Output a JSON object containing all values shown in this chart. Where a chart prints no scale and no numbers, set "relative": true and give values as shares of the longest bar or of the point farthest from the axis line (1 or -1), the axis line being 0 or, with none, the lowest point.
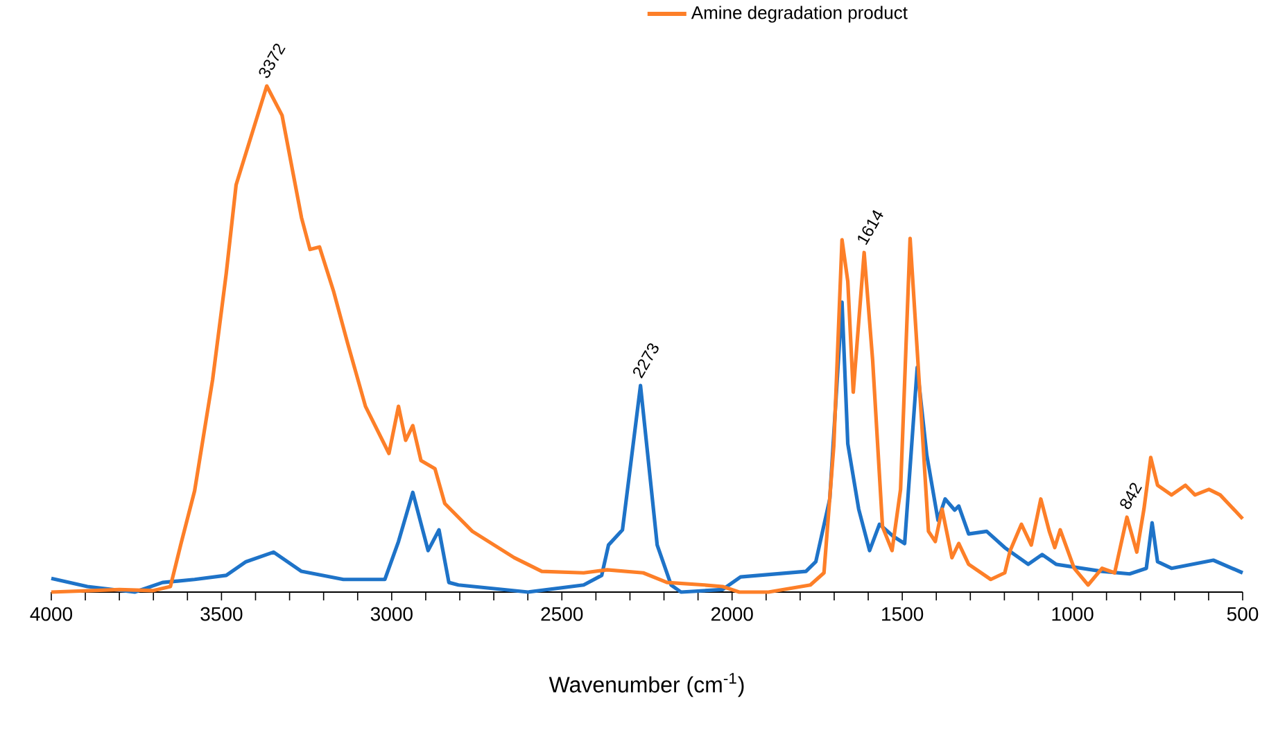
{
  "chart_data": {
    "type": "line",
    "xlabel": "Wavenumber (cm$^{-1}$)",
    "relative": true,
    "legend": "top",
    "xlim": [
      4000,
      500
    ],
    "xticks": [
      4000,
      {
        "value": 3900,
        "label": null
      },
      {
        "value": 3800,
        "label": null
      },
      {
        "value": 3700,
        "label": null
      },
      {
        "value": 3600,
        "label": null
      },
      3500,
      {
        "value": 3400,
        "label": null
      },
      {
        "value": 3300,
        "label": null
      },
      {
        "value": 3200,
        "label": null
      },
      {
        "value": 3100,
        "label": null
      },
      3000,
      {
        "value": 2900,
        "label": null
      },
      {
        "value": 2800,
        "label": null
      },
      {
        "value": 2700,
        "label": null
      },
      {
        "value": 2600,
        "label": null
      },
      2500,
      {
        "value": 2400,
        "label": null
      },
      {
        "value": 2300,
        "label": null
      },
      {
        "value": 2200,
        "label": null
      },
      {
        "value": 2100,
        "label": null
      },
      2000,
      {
        "value": 1900,
        "label": null
      },
      {
        "value": 1800,
        "label": null
      },
      {
        "value": 1700,
        "label": null
      },
      {
        "value": 1600,
        "label": null
      },
      1500,
      {
        "value": 1400,
        "label": null
      },
      {
        "value": 1300,
        "label": null
      },
      {
        "value": 1200,
        "label": null
      },
      {
        "value": 1100,
        "label": null
      },
      1000,
      {
        "value": 900,
        "label": null
      },
      {
        "value": 800,
        "label": null
      },
      {
        "value": 700,
        "label": null
      },
      {
        "value": 600,
        "label": null
      },
      500
    ],
    "series": [
      {
        "color": "#1e73c8",
        "x": [
          4000,
          3894,
          3755,
          3673,
          3579,
          3486,
          3428,
          3347,
          3265,
          3142,
          3020,
          2980,
          2938,
          2893,
          2861,
          2832,
          2804,
          2599,
          2436,
          2383,
          2363,
          2322,
          2269,
          2220,
          2179,
          2150,
          2028,
          1975,
          1783,
          1754,
          1713,
          1677,
          1660,
          1628,
          1596,
          1567,
          1526,
          1493,
          1456,
          1428,
          1395,
          1374,
          1346,
          1334,
          1305,
          1252,
          1199,
          1130,
          1089,
          1048,
          913,
          832,
          783,
          766,
          750,
          709,
          586,
          500
        ],
        "values": [
          0.027,
          0.011,
          0.0,
          0.019,
          0.025,
          0.033,
          0.06,
          0.079,
          0.041,
          0.025,
          0.025,
          0.1,
          0.197,
          0.082,
          0.123,
          0.019,
          0.014,
          0.0,
          0.014,
          0.033,
          0.093,
          0.123,
          0.408,
          0.093,
          0.014,
          0.0,
          0.005,
          0.03,
          0.041,
          0.06,
          0.184,
          0.573,
          0.293,
          0.164,
          0.082,
          0.134,
          0.11,
          0.096,
          0.444,
          0.271,
          0.142,
          0.184,
          0.162,
          0.17,
          0.115,
          0.12,
          0.088,
          0.055,
          0.074,
          0.055,
          0.041,
          0.036,
          0.047,
          0.137,
          0.06,
          0.047,
          0.063,
          0.038
        ]
      },
      {
        "name": "Amine degradation product",
        "color": "#fd7f28",
        "x": [
          4000,
          3800,
          3700,
          3650,
          3620,
          3579,
          3526,
          3486,
          3457,
          3428,
          3367,
          3322,
          3265,
          3240,
          3212,
          3171,
          3130,
          3077,
          3008,
          2980,
          2959,
          2938,
          2914,
          2873,
          2844,
          2763,
          2640,
          2559,
          2436,
          2367,
          2261,
          2191,
          2081,
          2028,
          1979,
          1893,
          1770,
          1730,
          1701,
          1677,
          1660,
          1644,
          1612,
          1587,
          1558,
          1530,
          1505,
          1477,
          1456,
          1423,
          1403,
          1383,
          1354,
          1334,
          1305,
          1240,
          1199,
          1183,
          1150,
          1121,
          1093,
          1068,
          1052,
          1036,
          995,
          954,
          913,
          876,
          840,
          811,
          790,
          770,
          750,
          709,
          668,
          640,
          599,
          566,
          500
        ],
        "values": [
          0.0,
          0.005,
          0.003,
          0.011,
          0.093,
          0.2,
          0.42,
          0.63,
          0.805,
          0.868,
          1.0,
          0.942,
          0.74,
          0.677,
          0.682,
          0.595,
          0.493,
          0.367,
          0.274,
          0.367,
          0.3,
          0.329,
          0.26,
          0.244,
          0.175,
          0.12,
          0.068,
          0.041,
          0.038,
          0.044,
          0.038,
          0.019,
          0.014,
          0.011,
          0.0,
          0.0,
          0.014,
          0.038,
          0.29,
          0.696,
          0.614,
          0.395,
          0.671,
          0.458,
          0.129,
          0.082,
          0.203,
          0.699,
          0.477,
          0.12,
          0.1,
          0.164,
          0.068,
          0.096,
          0.055,
          0.025,
          0.038,
          0.082,
          0.134,
          0.093,
          0.184,
          0.12,
          0.088,
          0.123,
          0.047,
          0.014,
          0.047,
          0.038,
          0.148,
          0.079,
          0.164,
          0.266,
          0.211,
          0.192,
          0.211,
          0.192,
          0.203,
          0.192,
          0.145
        ]
      }
    ],
    "annotations": [
      {
        "text": "3372",
        "x": 3372,
        "y": 1.0
      },
      {
        "text": "2273",
        "x": 2273,
        "y": 0.408
      },
      {
        "text": "1614",
        "x": 1614,
        "y": 0.671
      },
      {
        "text": "842",
        "x": 842,
        "y": 0.148
      }
    ]
  }
}
